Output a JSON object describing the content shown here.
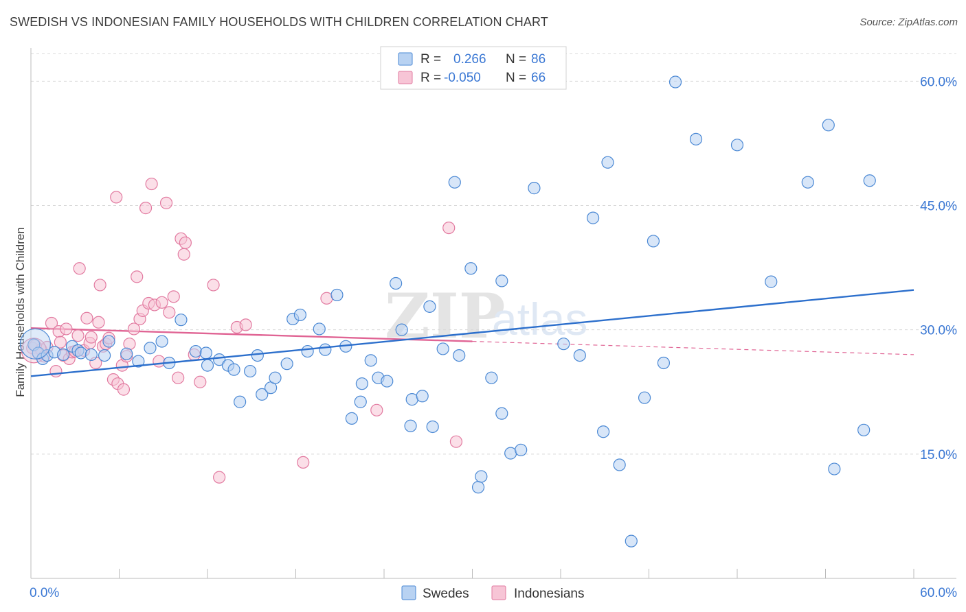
{
  "title": "SWEDISH VS INDONESIAN FAMILY HOUSEHOLDS WITH CHILDREN CORRELATION CHART",
  "source": "Source: ZipAtlas.com",
  "watermark": {
    "zip": "ZIP",
    "atlas": "atlas"
  },
  "colors": {
    "blue": "#4a88d4",
    "blue_fill": "#b8d2f2",
    "blue_line": "#2c6fcc",
    "pink": "#e27aa0",
    "pink_fill": "#f7c5d6",
    "pink_line": "#e06494",
    "axis_text": "#3b78d4",
    "grid": "#d8d8d8"
  },
  "legend": {
    "rows": [
      {
        "r_label": "R =",
        "r_value": "0.266",
        "n_label": "N =",
        "n_value": "86"
      },
      {
        "r_label": "R =",
        "r_value": "-0.050",
        "n_label": "N =",
        "n_value": "66"
      }
    ]
  },
  "bottom_legend": {
    "series1": "Swedes",
    "series2": "Indonesians"
  },
  "chart_data": {
    "type": "scatter",
    "title": "SWEDISH VS INDONESIAN FAMILY HOUSEHOLDS WITH CHILDREN CORRELATION CHART",
    "xlabel": "",
    "ylabel": "Family Households with Children",
    "xlim": [
      0,
      60
    ],
    "ylim": [
      0,
      64
    ],
    "x_tick_labels": [
      "0.0%",
      "60.0%"
    ],
    "y_ticks": [
      15,
      30,
      45,
      60
    ],
    "y_tick_labels": [
      "15.0%",
      "30.0%",
      "45.0%",
      "60.0%"
    ],
    "grid": true,
    "legend_position": "top-center",
    "series": [
      {
        "name": "Swedes",
        "r": 0.266,
        "n": 86,
        "trend": {
          "x0": 0,
          "y0": 24.4,
          "x1": 60,
          "y1": 34.8
        },
        "points": [
          [
            0.2,
            28.2
          ],
          [
            0.5,
            27.2
          ],
          [
            0.8,
            26.5
          ],
          [
            1.1,
            26.9
          ],
          [
            1.6,
            27.3
          ],
          [
            2.2,
            27.0
          ],
          [
            2.8,
            28.0
          ],
          [
            3.2,
            27.5
          ],
          [
            3.4,
            27.2
          ],
          [
            4.1,
            27.0
          ],
          [
            5.0,
            26.9
          ],
          [
            5.3,
            28.6
          ],
          [
            6.5,
            27.1
          ],
          [
            7.3,
            26.2
          ],
          [
            8.1,
            27.8
          ],
          [
            8.9,
            28.6
          ],
          [
            9.4,
            26.0
          ],
          [
            10.2,
            31.2
          ],
          [
            11.2,
            27.4
          ],
          [
            11.9,
            27.2
          ],
          [
            12.0,
            25.7
          ],
          [
            12.8,
            26.4
          ],
          [
            13.4,
            25.7
          ],
          [
            13.8,
            25.2
          ],
          [
            14.2,
            21.3
          ],
          [
            14.9,
            25.0
          ],
          [
            15.4,
            26.9
          ],
          [
            15.7,
            22.2
          ],
          [
            16.3,
            23.0
          ],
          [
            16.6,
            24.2
          ],
          [
            17.4,
            25.9
          ],
          [
            17.8,
            31.3
          ],
          [
            18.3,
            31.8
          ],
          [
            18.8,
            27.4
          ],
          [
            19.6,
            30.1
          ],
          [
            20.0,
            27.6
          ],
          [
            20.8,
            34.2
          ],
          [
            21.4,
            28.0
          ],
          [
            21.8,
            19.3
          ],
          [
            22.4,
            21.3
          ],
          [
            22.5,
            23.5
          ],
          [
            23.1,
            26.3
          ],
          [
            23.6,
            24.2
          ],
          [
            24.2,
            23.8
          ],
          [
            24.8,
            35.6
          ],
          [
            25.2,
            30.0
          ],
          [
            25.8,
            18.4
          ],
          [
            25.9,
            21.6
          ],
          [
            26.6,
            22.0
          ],
          [
            27.3,
            18.3
          ],
          [
            27.1,
            32.8
          ],
          [
            28.0,
            27.7
          ],
          [
            28.8,
            47.8
          ],
          [
            29.1,
            26.9
          ],
          [
            29.9,
            37.4
          ],
          [
            30.4,
            11.0
          ],
          [
            30.6,
            12.3
          ],
          [
            31.3,
            24.2
          ],
          [
            32.0,
            35.9
          ],
          [
            32.0,
            19.9
          ],
          [
            32.6,
            15.1
          ],
          [
            33.3,
            15.5
          ],
          [
            34.2,
            47.1
          ],
          [
            36.2,
            28.3
          ],
          [
            37.3,
            26.9
          ],
          [
            38.2,
            43.5
          ],
          [
            38.9,
            17.7
          ],
          [
            39.2,
            50.2
          ],
          [
            40.0,
            13.7
          ],
          [
            40.8,
            4.5
          ],
          [
            41.7,
            21.8
          ],
          [
            42.3,
            40.7
          ],
          [
            43.0,
            26.0
          ],
          [
            43.8,
            59.9
          ],
          [
            45.2,
            53.0
          ],
          [
            48.0,
            52.3
          ],
          [
            50.3,
            35.8
          ],
          [
            52.8,
            47.8
          ],
          [
            54.2,
            54.7
          ],
          [
            54.6,
            13.2
          ],
          [
            56.6,
            17.9
          ],
          [
            57.0,
            48.0
          ]
        ]
      },
      {
        "name": "Indonesians",
        "r": -0.05,
        "n": 66,
        "trend": {
          "x0": 0,
          "y0": 30.2,
          "x1": 60,
          "y1": 27.0,
          "solid_until_x": 30
        },
        "points": [
          [
            0.1,
            27.8
          ],
          [
            0.3,
            28.1
          ],
          [
            0.5,
            27.1
          ],
          [
            0.7,
            27.6
          ],
          [
            0.9,
            26.8
          ],
          [
            1.1,
            27.9
          ],
          [
            1.4,
            30.8
          ],
          [
            1.7,
            25.0
          ],
          [
            1.9,
            29.8
          ],
          [
            2.0,
            28.5
          ],
          [
            2.2,
            26.9
          ],
          [
            2.4,
            30.1
          ],
          [
            2.6,
            26.5
          ],
          [
            2.8,
            27.3
          ],
          [
            3.0,
            27.4
          ],
          [
            3.2,
            29.3
          ],
          [
            3.3,
            37.4
          ],
          [
            3.6,
            27.5
          ],
          [
            3.8,
            31.4
          ],
          [
            4.0,
            28.4
          ],
          [
            4.1,
            29.1
          ],
          [
            4.4,
            26.0
          ],
          [
            4.6,
            30.9
          ],
          [
            4.7,
            35.4
          ],
          [
            4.9,
            28.0
          ],
          [
            5.1,
            28.3
          ],
          [
            5.3,
            29.0
          ],
          [
            5.6,
            24.0
          ],
          [
            5.8,
            46.0
          ],
          [
            5.9,
            23.5
          ],
          [
            6.2,
            25.7
          ],
          [
            6.3,
            22.8
          ],
          [
            6.5,
            26.8
          ],
          [
            6.7,
            28.3
          ],
          [
            7.0,
            30.1
          ],
          [
            7.2,
            36.4
          ],
          [
            7.4,
            31.3
          ],
          [
            7.6,
            32.3
          ],
          [
            7.8,
            44.7
          ],
          [
            8.0,
            33.2
          ],
          [
            8.2,
            47.6
          ],
          [
            8.4,
            33.0
          ],
          [
            8.7,
            26.2
          ],
          [
            8.9,
            33.3
          ],
          [
            9.2,
            45.3
          ],
          [
            9.4,
            32.1
          ],
          [
            9.7,
            34.0
          ],
          [
            10.0,
            24.2
          ],
          [
            10.2,
            41.0
          ],
          [
            10.4,
            39.1
          ],
          [
            10.5,
            40.5
          ],
          [
            11.1,
            27.0
          ],
          [
            11.5,
            23.7
          ],
          [
            12.4,
            35.4
          ],
          [
            12.8,
            12.2
          ],
          [
            14.0,
            30.3
          ],
          [
            14.6,
            30.6
          ],
          [
            18.5,
            14.0
          ],
          [
            20.1,
            33.8
          ],
          [
            23.5,
            20.3
          ],
          [
            28.4,
            42.3
          ],
          [
            28.9,
            16.5
          ]
        ]
      }
    ]
  }
}
